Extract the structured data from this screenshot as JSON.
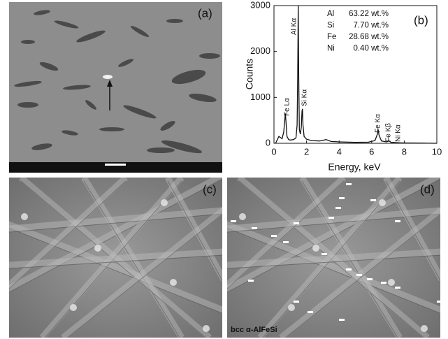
{
  "panels": {
    "a": "(a)",
    "b": "(b)",
    "c": "(c)",
    "d": "(d)",
    "d_caption": "bcc α-AlFeSi"
  },
  "chart_data": {
    "type": "line",
    "xlabel": "Energy, keV",
    "ylabel": "Counts",
    "x": [
      0.1,
      0.3,
      0.5,
      0.6,
      0.65,
      0.7,
      0.75,
      0.8,
      0.9,
      1.0,
      1.2,
      1.35,
      1.42,
      1.46,
      1.49,
      1.52,
      1.56,
      1.62,
      1.68,
      1.72,
      1.75,
      1.78,
      1.85,
      2.0,
      2.3,
      2.8,
      3.2,
      3.5,
      4,
      5,
      5.8,
      6.2,
      6.35,
      6.4,
      6.45,
      6.6,
      6.9,
      7.06,
      7.2,
      7.47,
      7.7,
      8,
      9,
      10
    ],
    "values": [
      0,
      150,
      100,
      250,
      450,
      650,
      400,
      150,
      80,
      70,
      80,
      120,
      400,
      1500,
      3000,
      1500,
      300,
      200,
      350,
      700,
      750,
      400,
      150,
      90,
      60,
      50,
      80,
      40,
      30,
      20,
      25,
      60,
      200,
      300,
      180,
      50,
      30,
      50,
      20,
      15,
      10,
      8,
      5,
      0
    ],
    "color": "#111111",
    "xlim": [
      0,
      10
    ],
    "xticks": [
      0,
      2,
      4,
      6,
      8,
      10
    ],
    "ylim": [
      0,
      3000
    ],
    "yticks": [
      0,
      1000,
      2000,
      3000
    ],
    "annotations": [
      "Fe Lα",
      "Al Kα",
      "Si Kα",
      "Fe Kα",
      "Fe Kβ",
      "Ni Kα"
    ],
    "composition": [
      {
        "element": "Al",
        "value": "63.22 wt.%"
      },
      {
        "element": "Si",
        "value": "7.70 wt.%"
      },
      {
        "element": "Fe",
        "value": "28.68 wt.%"
      },
      {
        "element": "Ni",
        "value": "0.40 wt.%"
      }
    ]
  }
}
